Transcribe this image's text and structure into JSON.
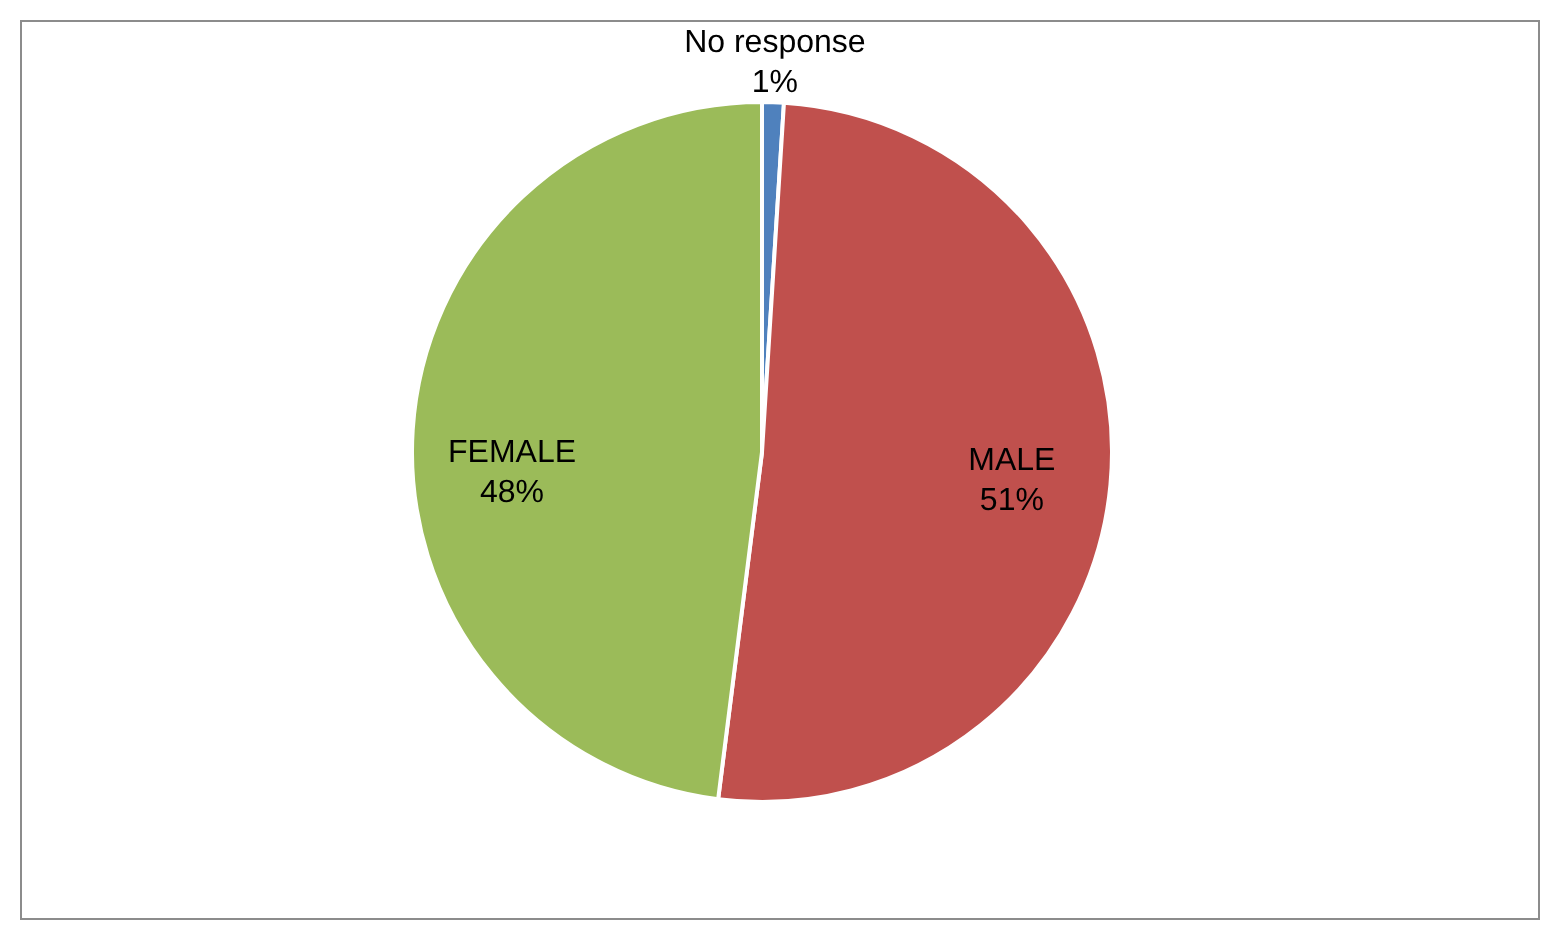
{
  "chart_data": {
    "type": "pie",
    "categories": [
      "No response",
      "MALE",
      "FEMALE"
    ],
    "values": [
      1,
      51,
      48
    ],
    "value_labels": [
      "1%",
      "51%",
      "48%"
    ],
    "colors": [
      "#4f81bd",
      "#c0504d",
      "#9bbb59"
    ],
    "legend": false
  }
}
